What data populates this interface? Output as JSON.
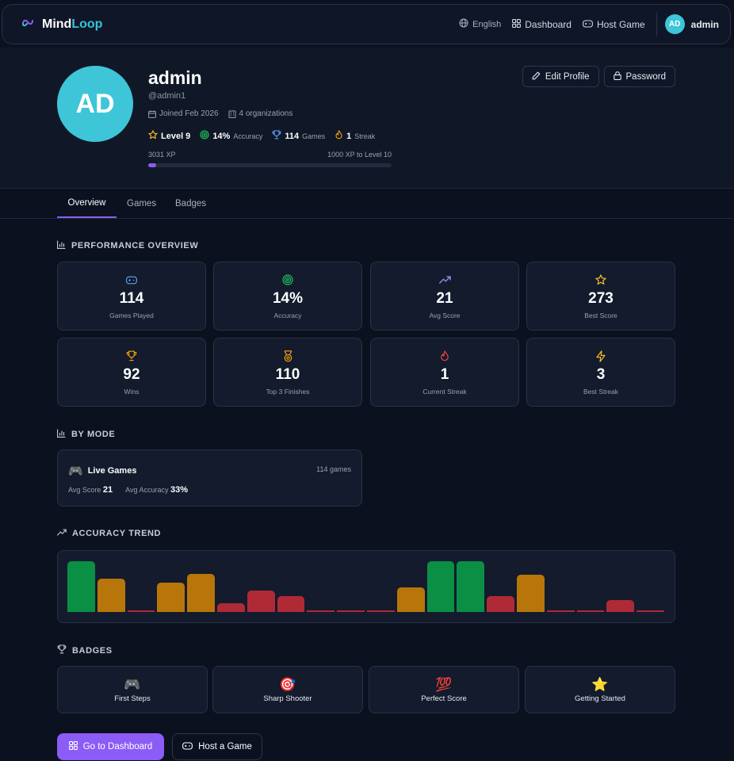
{
  "nav": {
    "brand_first": "Mind",
    "brand_second": "Loop",
    "language": "English",
    "dashboard": "Dashboard",
    "host_game": "Host Game",
    "user_initials": "AD",
    "username": "admin"
  },
  "profile": {
    "initials": "AD",
    "name": "admin",
    "handle": "@admin1",
    "joined": "Joined Feb 2026",
    "organizations": "4 organizations",
    "level": "Level 9",
    "accuracy_value": "14%",
    "accuracy_label": "Accuracy",
    "games_value": "114",
    "games_label": "Games",
    "streak_value": "1",
    "streak_label": "Streak",
    "xp": "3031 XP",
    "xp_to_next": "1000 XP to Level 10",
    "xp_progress": 0.031,
    "edit_profile": "Edit Profile",
    "password": "Password"
  },
  "tabs": [
    "Overview",
    "Games",
    "Badges"
  ],
  "performance": {
    "title": "PERFORMANCE OVERVIEW",
    "stats": [
      {
        "icon": "gamepad-icon",
        "value": "114",
        "label": "Games Played",
        "color": "#60a5fa"
      },
      {
        "icon": "target-icon",
        "value": "14%",
        "label": "Accuracy",
        "color": "#22c55e"
      },
      {
        "icon": "trending-up-icon",
        "value": "21",
        "label": "Avg Score",
        "color": "#a78bfa"
      },
      {
        "icon": "star-icon",
        "value": "273",
        "label": "Best Score",
        "color": "#fbbf24"
      },
      {
        "icon": "trophy-icon",
        "value": "92",
        "label": "Wins",
        "color": "#f59e0b"
      },
      {
        "icon": "medal-icon",
        "value": "110",
        "label": "Top 3 Finishes",
        "color": "#f59e0b"
      },
      {
        "icon": "flame-icon",
        "value": "1",
        "label": "Current Streak",
        "color": "#ef4444"
      },
      {
        "icon": "zap-icon",
        "value": "3",
        "label": "Best Streak",
        "color": "#fbbf24"
      }
    ]
  },
  "by_mode": {
    "title": "BY MODE",
    "mode_name": "Live Games",
    "game_count": "114 games",
    "avg_score_label": "Avg Score",
    "avg_score": "21",
    "avg_accuracy_label": "Avg Accuracy",
    "avg_accuracy": "33%"
  },
  "accuracy_trend": {
    "title": "ACCURACY TREND",
    "colors": {
      "high": "#0a8f45",
      "mid": "#b8760a",
      "low": "#b02a36"
    }
  },
  "chart_data": {
    "type": "bar",
    "values": [
      100,
      66,
      3,
      58,
      75,
      17,
      42,
      32,
      3,
      3,
      3,
      49,
      100,
      100,
      32,
      74,
      3,
      3,
      24,
      3
    ],
    "tiers": [
      "high",
      "mid",
      "low",
      "mid",
      "mid",
      "low",
      "low",
      "low",
      "low",
      "low",
      "low",
      "mid",
      "high",
      "high",
      "low",
      "mid",
      "low",
      "low",
      "low",
      "low"
    ],
    "ylim": [
      0,
      100
    ]
  },
  "badges": {
    "title": "BADGES",
    "items": [
      {
        "emoji": "🎮",
        "label": "First Steps"
      },
      {
        "emoji": "🎯",
        "label": "Sharp Shooter"
      },
      {
        "emoji": "💯",
        "label": "Perfect Score"
      },
      {
        "emoji": "⭐",
        "label": "Getting Started"
      }
    ]
  },
  "actions": {
    "dashboard": "Go to Dashboard",
    "host": "Host a Game"
  }
}
